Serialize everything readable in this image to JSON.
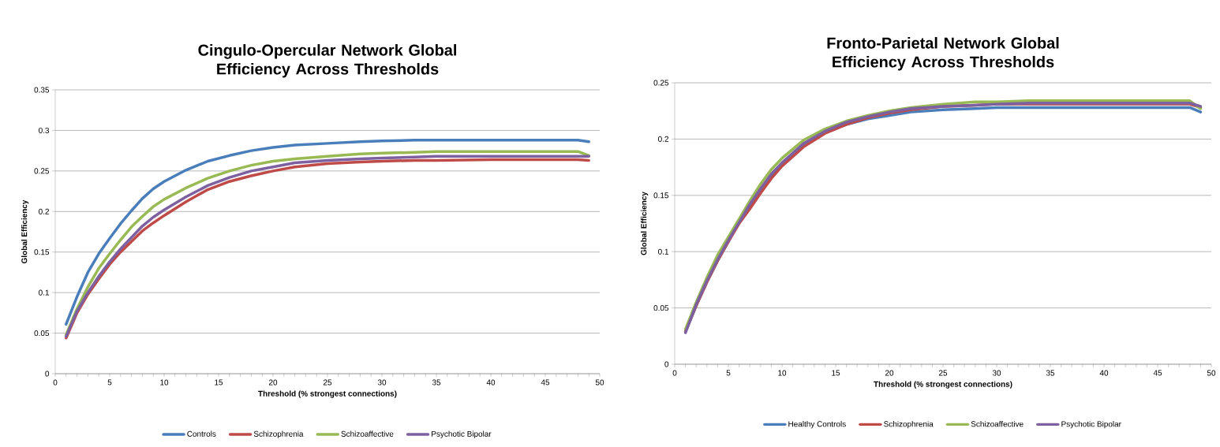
{
  "chart_data": [
    {
      "type": "line",
      "title": "Cingulo-Opercular Network Global Efficiency Across Thresholds",
      "xlabel": "Threshold (% strongest connections)",
      "ylabel": "Global Efficiency",
      "x": [
        1,
        2,
        3,
        4,
        5,
        6,
        7,
        8,
        9,
        10,
        12,
        14,
        16,
        18,
        20,
        22,
        25,
        28,
        30,
        33,
        35,
        40,
        45,
        48,
        49
      ],
      "xlim": [
        0,
        50
      ],
      "xticks": [
        0,
        5,
        10,
        15,
        20,
        25,
        30,
        35,
        40,
        45,
        50
      ],
      "ylim": [
        0,
        0.35
      ],
      "yticks": [
        0,
        0.05,
        0.1,
        0.15,
        0.2,
        0.25,
        0.3,
        0.35
      ],
      "grid": "y",
      "legend": "bottom",
      "marker": "none",
      "line_style": "solid",
      "series": [
        {
          "name": "Controls",
          "color": "#4a7ebb",
          "values": [
            0.061,
            0.095,
            0.125,
            0.148,
            0.167,
            0.185,
            0.201,
            0.216,
            0.228,
            0.237,
            0.251,
            0.262,
            0.269,
            0.275,
            0.279,
            0.282,
            0.284,
            0.286,
            0.287,
            0.288,
            0.288,
            0.288,
            0.288,
            0.288,
            0.286
          ]
        },
        {
          "name": "Schizophrenia",
          "color": "#be4b48",
          "values": [
            0.044,
            0.075,
            0.098,
            0.117,
            0.135,
            0.15,
            0.163,
            0.176,
            0.186,
            0.195,
            0.212,
            0.227,
            0.237,
            0.244,
            0.25,
            0.255,
            0.259,
            0.261,
            0.262,
            0.263,
            0.263,
            0.264,
            0.264,
            0.264,
            0.263
          ]
        },
        {
          "name": "Schizoaffective",
          "color": "#98b954",
          "values": [
            0.048,
            0.08,
            0.107,
            0.13,
            0.148,
            0.165,
            0.181,
            0.194,
            0.206,
            0.215,
            0.229,
            0.241,
            0.25,
            0.257,
            0.262,
            0.265,
            0.268,
            0.271,
            0.272,
            0.273,
            0.274,
            0.274,
            0.274,
            0.274,
            0.269
          ]
        },
        {
          "name": "Psychotic Bipolar",
          "color": "#7d60a0",
          "values": [
            0.046,
            0.077,
            0.1,
            0.12,
            0.138,
            0.154,
            0.168,
            0.182,
            0.193,
            0.202,
            0.218,
            0.232,
            0.242,
            0.25,
            0.255,
            0.26,
            0.263,
            0.265,
            0.266,
            0.267,
            0.268,
            0.268,
            0.268,
            0.268,
            0.268
          ]
        }
      ]
    },
    {
      "type": "line",
      "title": "Fronto-Parietal Network Global Efficiency Across Thresholds",
      "xlabel": "Threshold (% strongest connections)",
      "ylabel": "Global Efficiency",
      "x": [
        1,
        2,
        3,
        4,
        5,
        6,
        7,
        8,
        9,
        10,
        12,
        14,
        16,
        18,
        20,
        22,
        25,
        28,
        30,
        33,
        35,
        40,
        45,
        48,
        49
      ],
      "xlim": [
        0,
        50
      ],
      "xticks": [
        0,
        5,
        10,
        15,
        20,
        25,
        30,
        35,
        40,
        45,
        50
      ],
      "ylim": [
        0,
        0.25
      ],
      "yticks": [
        0,
        0.05,
        0.1,
        0.15,
        0.2,
        0.25
      ],
      "grid": "y",
      "legend": "bottom",
      "marker": "none",
      "line_style": "solid",
      "series": [
        {
          "name": "Healthy Controls",
          "color": "#4a7ebb",
          "values": [
            0.029,
            0.052,
            0.073,
            0.092,
            0.109,
            0.126,
            0.141,
            0.155,
            0.168,
            0.178,
            0.195,
            0.206,
            0.213,
            0.218,
            0.221,
            0.224,
            0.226,
            0.227,
            0.228,
            0.228,
            0.228,
            0.228,
            0.228,
            0.228,
            0.224
          ]
        },
        {
          "name": "Schizophrenia",
          "color": "#be4b48",
          "values": [
            0.029,
            0.052,
            0.073,
            0.092,
            0.109,
            0.125,
            0.138,
            0.152,
            0.165,
            0.176,
            0.193,
            0.205,
            0.213,
            0.219,
            0.223,
            0.226,
            0.229,
            0.23,
            0.231,
            0.231,
            0.231,
            0.231,
            0.231,
            0.231,
            0.228
          ]
        },
        {
          "name": "Schizoaffective",
          "color": "#98b954",
          "values": [
            0.031,
            0.055,
            0.077,
            0.097,
            0.113,
            0.129,
            0.145,
            0.16,
            0.173,
            0.183,
            0.199,
            0.209,
            0.216,
            0.221,
            0.225,
            0.228,
            0.231,
            0.233,
            0.233,
            0.234,
            0.234,
            0.234,
            0.234,
            0.234,
            0.227
          ]
        },
        {
          "name": "Psychotic Bipolar",
          "color": "#7d60a0",
          "values": [
            0.028,
            0.053,
            0.074,
            0.093,
            0.11,
            0.126,
            0.142,
            0.156,
            0.169,
            0.179,
            0.196,
            0.207,
            0.215,
            0.22,
            0.224,
            0.227,
            0.229,
            0.23,
            0.231,
            0.232,
            0.232,
            0.232,
            0.232,
            0.232,
            0.229
          ]
        }
      ]
    }
  ]
}
